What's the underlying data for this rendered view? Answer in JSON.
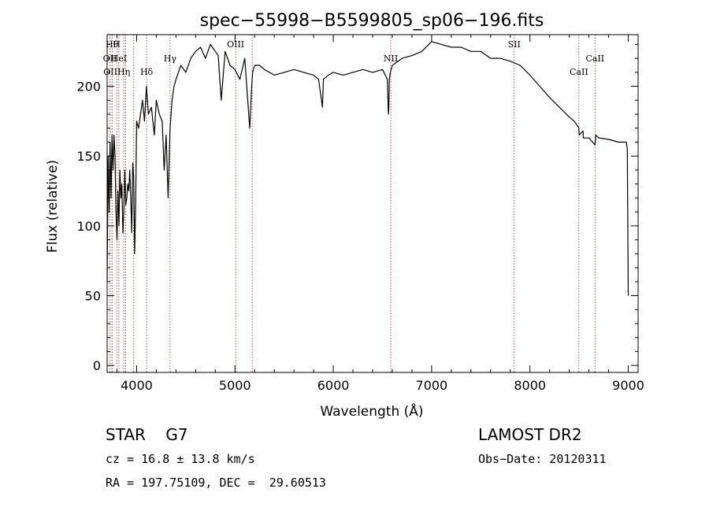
{
  "chart_data": {
    "type": "line",
    "title": "spec−55998−B5599805_sp06−196.fits",
    "xlabel": "Wavelength (Å)",
    "ylabel": "Flux (relative)",
    "xlim": [
      3700,
      9100
    ],
    "ylim": [
      -5,
      237
    ],
    "xticks": [
      4000,
      5000,
      6000,
      7000,
      8000,
      9000
    ],
    "yticks": [
      0,
      50,
      100,
      150,
      200
    ],
    "x": [
      3700,
      3710,
      3720,
      3730,
      3740,
      3750,
      3760,
      3770,
      3780,
      3790,
      3800,
      3810,
      3820,
      3830,
      3840,
      3850,
      3860,
      3870,
      3880,
      3890,
      3900,
      3910,
      3920,
      3930,
      3940,
      3950,
      3960,
      3970,
      3980,
      3990,
      4000,
      4020,
      4040,
      4060,
      4080,
      4100,
      4120,
      4150,
      4180,
      4200,
      4230,
      4260,
      4280,
      4300,
      4320,
      4340,
      4360,
      4380,
      4400,
      4450,
      4500,
      4550,
      4600,
      4650,
      4700,
      4750,
      4800,
      4830,
      4860,
      4900,
      4950,
      5000,
      5050,
      5100,
      5150,
      5170,
      5180,
      5200,
      5250,
      5300,
      5400,
      5500,
      5600,
      5700,
      5800,
      5850,
      5890,
      5900,
      5950,
      6000,
      6100,
      6200,
      6300,
      6400,
      6500,
      6550,
      6560,
      6565,
      6570,
      6580,
      6600,
      6700,
      6800,
      6900,
      7000,
      7100,
      7200,
      7300,
      7400,
      7500,
      7600,
      7700,
      7800,
      7900,
      8000,
      8100,
      8200,
      8300,
      8400,
      8450,
      8498,
      8500,
      8540,
      8542,
      8600,
      8662,
      8670,
      8700,
      8800,
      8900,
      8980,
      8990,
      9000
    ],
    "flux": [
      60,
      150,
      110,
      160,
      120,
      165,
      140,
      165,
      150,
      110,
      90,
      125,
      100,
      140,
      120,
      130,
      95,
      110,
      140,
      115,
      120,
      130,
      125,
      140,
      120,
      95,
      145,
      135,
      80,
      115,
      175,
      170,
      180,
      190,
      175,
      200,
      180,
      185,
      165,
      190,
      180,
      175,
      140,
      165,
      120,
      170,
      190,
      200,
      205,
      215,
      210,
      220,
      225,
      228,
      220,
      230,
      225,
      222,
      190,
      225,
      215,
      212,
      205,
      220,
      170,
      200,
      210,
      215,
      215,
      212,
      208,
      210,
      212,
      210,
      208,
      205,
      185,
      205,
      208,
      210,
      208,
      210,
      212,
      210,
      212,
      205,
      180,
      185,
      205,
      210,
      215,
      220,
      222,
      225,
      232,
      230,
      228,
      228,
      225,
      225,
      220,
      220,
      218,
      215,
      208,
      200,
      192,
      185,
      178,
      175,
      170,
      165,
      168,
      163,
      163,
      158,
      165,
      163,
      162,
      160,
      160,
      155,
      50
    ],
    "vlines": [
      {
        "x": 3750,
        "label": "Hθ",
        "row": 0
      },
      {
        "x": 3798,
        "label": "H",
        "row": 0
      },
      {
        "x": 3728,
        "label": "OII",
        "row": 1
      },
      {
        "x": 3820,
        "label": "HeI",
        "row": 1
      },
      {
        "x": 3750,
        "label": "OIII",
        "row": 2
      },
      {
        "x": 3869,
        "label": "Hη",
        "row": 2
      },
      {
        "x": 3889,
        "label": "",
        "row": 0
      },
      {
        "x": 3970,
        "label": "",
        "row": 0
      },
      {
        "x": 4101,
        "label": "Hδ",
        "row": 2
      },
      {
        "x": 4340,
        "label": "Hγ",
        "row": 1
      },
      {
        "x": 5007,
        "label": "OIII",
        "row": 0
      },
      {
        "x": 5175,
        "label": "",
        "row": 0
      },
      {
        "x": 6585,
        "label": "NII",
        "row": 1
      },
      {
        "x": 7840,
        "label": "SII",
        "row": 0
      },
      {
        "x": 8498,
        "label": "CaII",
        "row": 2
      },
      {
        "x": 8662,
        "label": "CaII",
        "row": 1
      }
    ]
  },
  "info": {
    "class": "STAR    G7",
    "survey": "LAMOST DR2",
    "cz": "cz = 16.8 ± 13.8 km/s",
    "obs_date": "Obs−Date: 20120311",
    "radec": "RA = 197.75109, DEC =  29.60513"
  }
}
